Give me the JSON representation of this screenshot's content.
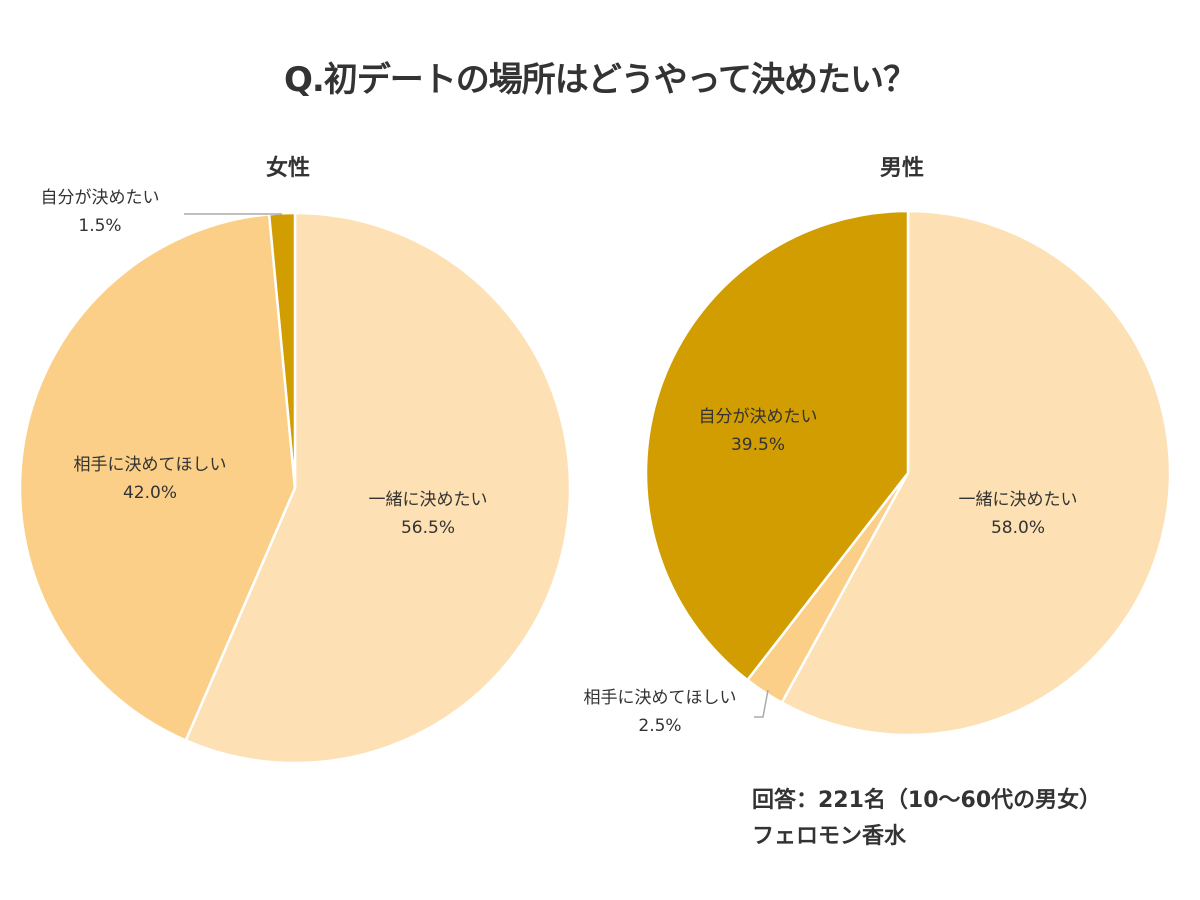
{
  "chart_data": [
    {
      "type": "pie",
      "title": "女性",
      "start": "top",
      "direction": "clockwise",
      "slices": [
        {
          "label": "一緒に決めたい",
          "value": 56.5,
          "display": "56.5%",
          "color": "#FDE0B3"
        },
        {
          "label": "相手に決めてほしい",
          "value": 42.0,
          "display": "42.0%",
          "color": "#FBCF87"
        },
        {
          "label": "自分が決めたい",
          "value": 1.5,
          "display": "1.5%",
          "color": "#D19D00"
        }
      ]
    },
    {
      "type": "pie",
      "title": "男性",
      "start": "top",
      "direction": "clockwise",
      "slices": [
        {
          "label": "一緒に決めたい",
          "value": 58.0,
          "display": "58.0%",
          "color": "#FDE0B3"
        },
        {
          "label": "相手に決めてほしい",
          "value": 2.5,
          "display": "2.5%",
          "color": "#FBCF87"
        },
        {
          "label": "自分が決めたい",
          "value": 39.5,
          "display": "39.5%",
          "color": "#D19D00"
        }
      ]
    }
  ],
  "header": {
    "title": "Q.初デートの場所はどうやって決めたい？"
  },
  "footer": {
    "respondents": "回答：221名（10〜60代の男女）",
    "source": "フェロモン香水"
  }
}
